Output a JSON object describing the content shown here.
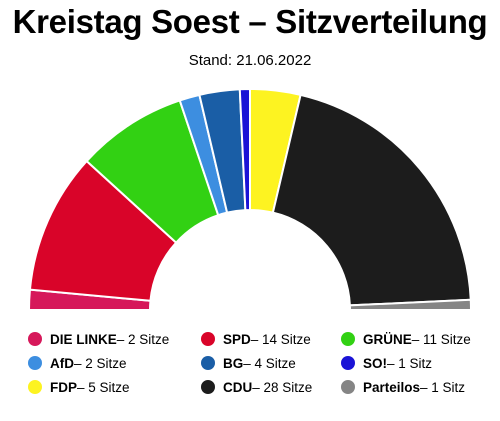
{
  "header": {
    "title": "Kreistag Soest – Sitzverteilung",
    "subtitle": "Stand: 21.06.2022"
  },
  "chart_data": {
    "type": "pie",
    "subtype": "parliament-semicircle",
    "title": "Kreistag Soest – Sitzverteilung",
    "subtitle": "Stand: 21.06.2022",
    "total_seats": 68,
    "series": [
      {
        "name": "DIE LINKE",
        "value": 2,
        "color": "#d6185a"
      },
      {
        "name": "SPD",
        "value": 14,
        "color": "#d90429"
      },
      {
        "name": "GRÜNE",
        "value": 11,
        "color": "#32d113"
      },
      {
        "name": "AfD",
        "value": 2,
        "color": "#3d8ee0"
      },
      {
        "name": "BG",
        "value": 4,
        "color": "#1a5ea6"
      },
      {
        "name": "SO!",
        "value": 1,
        "color": "#1a13d6"
      },
      {
        "name": "FDP",
        "value": 5,
        "color": "#fdf321"
      },
      {
        "name": "CDU",
        "value": 28,
        "color": "#1c1c1c"
      },
      {
        "name": "Parteilos",
        "value": 1,
        "color": "#858585"
      }
    ],
    "legend": [
      {
        "party": "DIE LINKE",
        "suffix": " – 2 Sitze",
        "color": "#d6185a"
      },
      {
        "party": "SPD",
        "suffix": " – 14 Sitze",
        "color": "#d90429"
      },
      {
        "party": "GRÜNE",
        "suffix": " – 11 Sitze",
        "color": "#32d113"
      },
      {
        "party": "AfD",
        "suffix": " – 2 Sitze",
        "color": "#3d8ee0"
      },
      {
        "party": "BG",
        "suffix": " – 4 Sitze",
        "color": "#1a5ea6"
      },
      {
        "party": "SO!",
        "suffix": " – 1 Sitz",
        "color": "#1a13d6"
      },
      {
        "party": "FDP",
        "suffix": " – 5 Sitze",
        "color": "#fdf321"
      },
      {
        "party": "CDU",
        "suffix": " – 28 Sitze",
        "color": "#1c1c1c"
      },
      {
        "party": "Parteilos",
        "suffix": " – 1 Sitz",
        "color": "#858585"
      }
    ],
    "legend_position": "bottom"
  }
}
